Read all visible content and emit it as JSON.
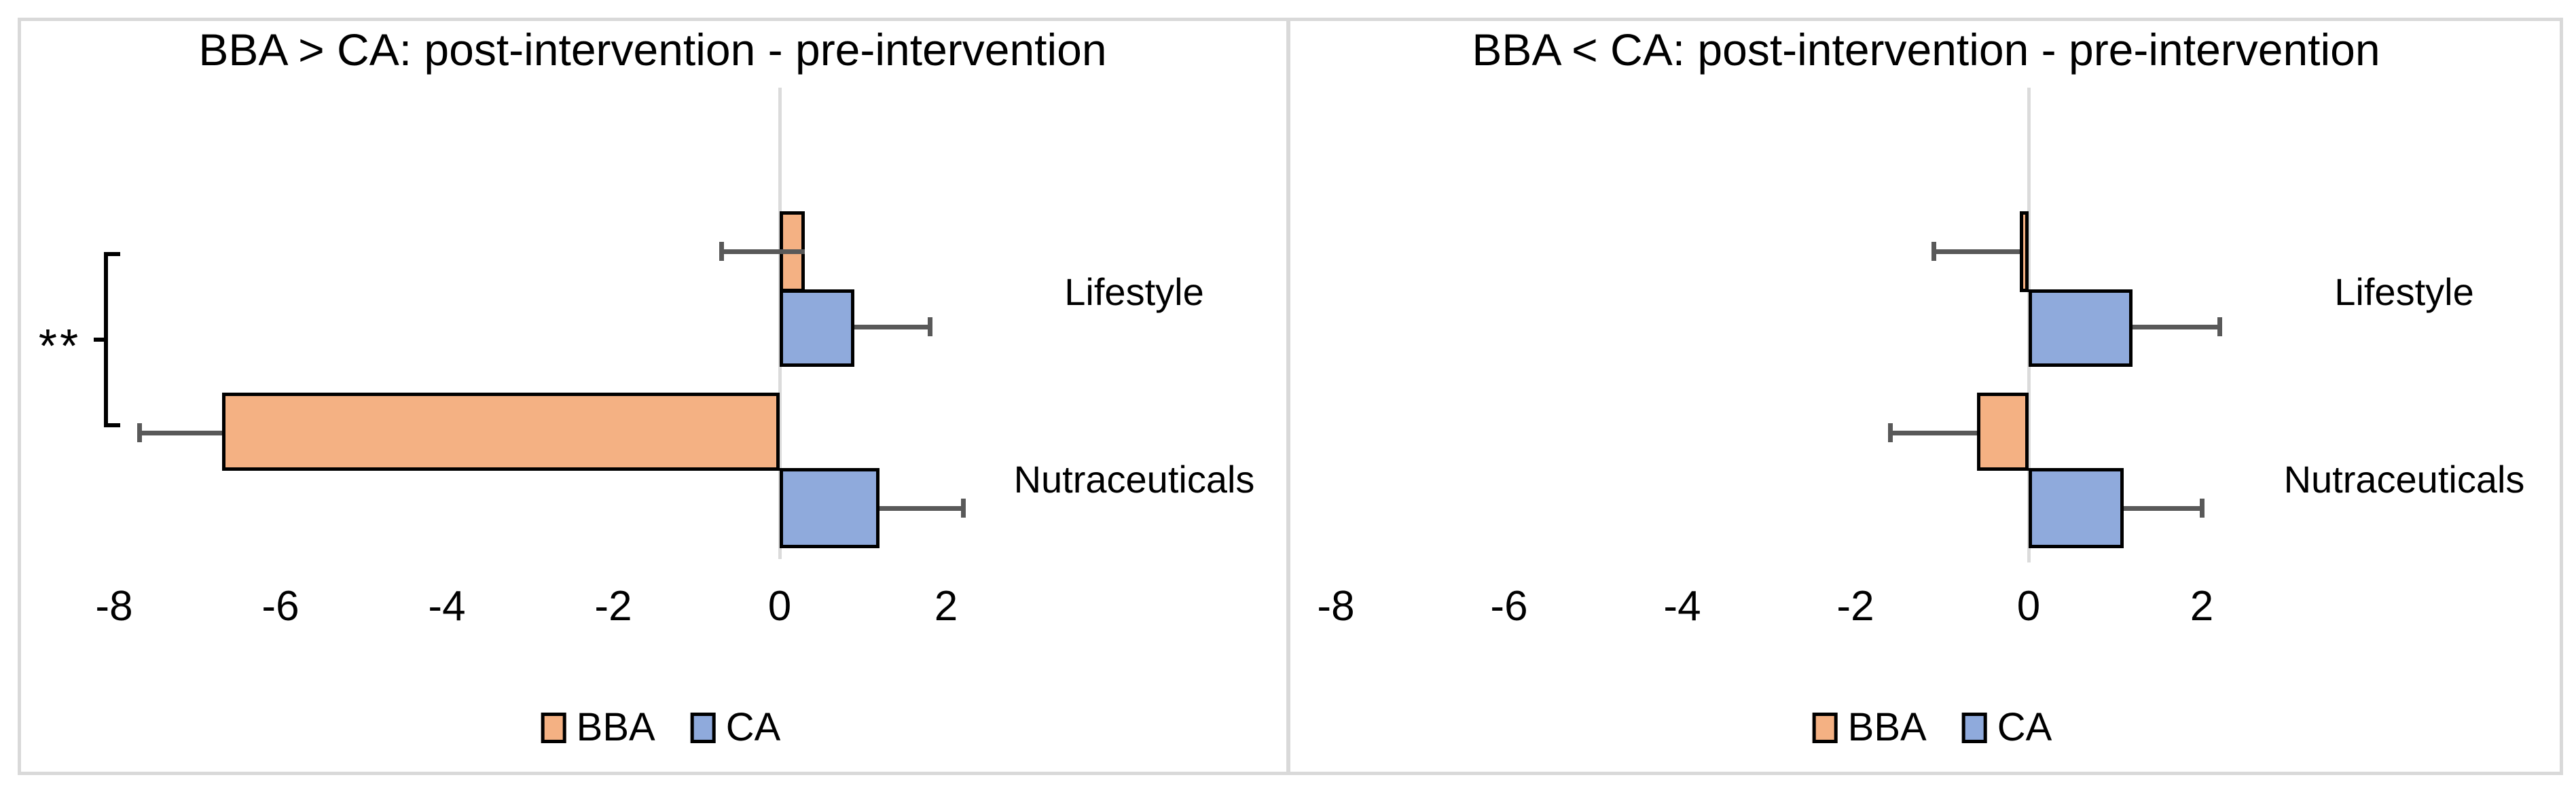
{
  "chart_data": [
    {
      "type": "bar",
      "orientation": "horizontal",
      "panel": "left",
      "title": "BBA > CA: post-intervention - pre-intervention",
      "categories": [
        "Lifestyle",
        "Nutraceuticals"
      ],
      "series": [
        {
          "name": "BBA",
          "color": "#F4B183",
          "values": [
            0.3,
            -6.7
          ],
          "errors": [
            1.0,
            1.0
          ],
          "error_direction": "minus"
        },
        {
          "name": "CA",
          "color": "#8FAADC",
          "values": [
            0.9,
            1.2
          ],
          "errors": [
            0.9,
            1.0
          ],
          "error_direction": "plus"
        }
      ],
      "x_ticks": [
        -8,
        -6,
        -4,
        -2,
        0,
        2
      ],
      "xlim": [
        -8.9,
        3.3
      ],
      "grid": "zero-line-only",
      "legend_position": "bottom",
      "annotation": {
        "text": "**"
      }
    },
    {
      "type": "bar",
      "orientation": "horizontal",
      "panel": "right",
      "title": "BBA < CA: post-intervention - pre-intervention",
      "categories": [
        "Lifestyle",
        "Nutraceuticals"
      ],
      "series": [
        {
          "name": "BBA",
          "color": "#F4B183",
          "values": [
            -0.1,
            -0.6
          ],
          "errors": [
            1.0,
            1.0
          ],
          "error_direction": "minus"
        },
        {
          "name": "CA",
          "color": "#8FAADC",
          "values": [
            1.2,
            1.1
          ],
          "errors": [
            1.0,
            0.9
          ],
          "error_direction": "plus"
        }
      ],
      "x_ticks": [
        -8,
        -6,
        -4,
        -2,
        0,
        2
      ],
      "xlim": [
        -8.9,
        3.3
      ],
      "grid": "zero-line-only",
      "legend_position": "bottom"
    }
  ],
  "colors": {
    "bar_orange": "#F4B183",
    "bar_blue": "#8FAADC",
    "bar_border": "#000000",
    "error_bar": "#595959",
    "zero_gridline": "#DBDBDB",
    "frame_border": "#D9D9D9",
    "text": "#000000"
  }
}
